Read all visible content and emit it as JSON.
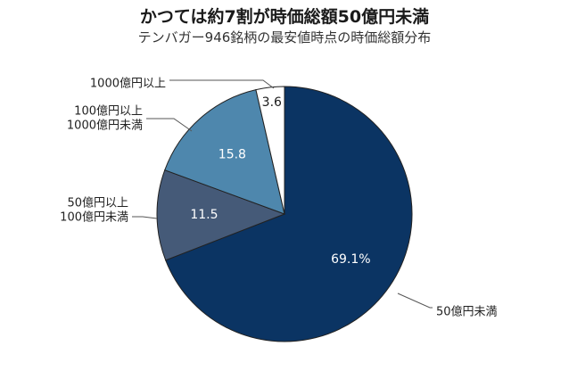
{
  "title": "かつては約7割が時価総額50億円未満",
  "subtitle": "テンバガー946銘柄の最安値時点の時価総額分布",
  "chart_data": {
    "type": "pie",
    "title": "かつては約7割が時価総額50億円未満",
    "subtitle": "テンバガー946銘柄の最安値時点の時価総額分布",
    "slices": [
      {
        "category_lines": [
          "50億円未満"
        ],
        "value": 69.1,
        "display": "69.1%",
        "color": "#0b3463",
        "label_color": "#ffffff"
      },
      {
        "category_lines": [
          "50億円以上",
          "100億円未満"
        ],
        "value": 11.5,
        "display": "11.5",
        "color": "#455a78",
        "label_color": "#ffffff"
      },
      {
        "category_lines": [
          "100億円以上",
          "1000億円未満"
        ],
        "value": 15.8,
        "display": "15.8",
        "color": "#4e87ad",
        "label_color": "#ffffff"
      },
      {
        "category_lines": [
          "1000億円以上"
        ],
        "value": 3.6,
        "display": "3.6",
        "color": "#ffffff",
        "label_color": "#1a1a1a"
      }
    ]
  }
}
